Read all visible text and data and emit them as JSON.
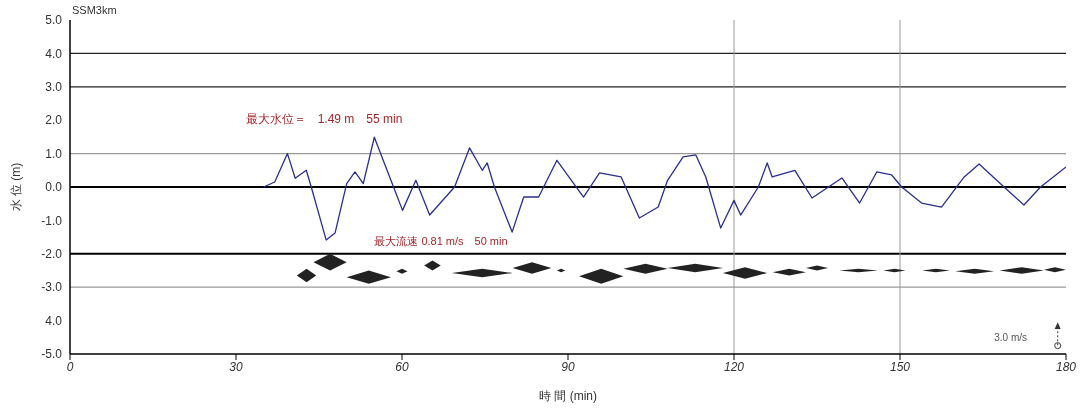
{
  "chart_data": {
    "type": "line",
    "xlabel": "時 間 (min)",
    "ylabel": "水 位 (m)",
    "x": [
      35,
      37,
      39.3,
      40.7,
      42.7,
      43.6,
      46.3,
      47.9,
      50,
      51.5,
      53,
      55,
      58,
      60.1,
      62.5,
      65,
      69.5,
      72.2,
      74.5,
      75.4,
      76.7,
      79.9,
      82,
      84.7,
      88,
      92.8,
      95.7,
      99.6,
      102.9,
      106.3,
      108,
      110.8,
      113.1,
      114.9,
      117.6,
      120,
      121.2,
      124.4,
      126,
      126.9,
      131,
      134.1,
      139.5,
      142.7,
      145.8,
      148.5,
      150.3,
      153.9,
      157.5,
      161.6,
      164.3,
      168.8,
      172.4,
      175.4,
      180
    ],
    "series": [
      {
        "color": "#2b2f8a",
        "values": [
          0,
          0.15,
          1.0,
          0.26,
          0.5,
          0,
          -1.59,
          -1.38,
          0.1,
          0.45,
          0.1,
          1.49,
          0.2,
          -0.7,
          0.2,
          -0.84,
          0,
          1.17,
          0.5,
          0.72,
          0,
          -1.35,
          -0.3,
          -0.3,
          0.8,
          -0.3,
          0.42,
          0.3,
          -0.93,
          -0.6,
          0.2,
          0.9,
          0.96,
          0.3,
          -1.23,
          -0.4,
          -0.84,
          0,
          0.72,
          0.3,
          0.5,
          -0.33,
          0.27,
          -0.48,
          0.45,
          0.36,
          0,
          -0.48,
          -0.6,
          0.3,
          0.69,
          0,
          -0.54,
          0,
          0.6
        ]
      }
    ],
    "xlim": [
      0,
      180
    ],
    "xticks": [
      0,
      30,
      60,
      90,
      120,
      150,
      180
    ],
    "ylim": [
      -5,
      5
    ],
    "yticks": [
      {
        "value": -5,
        "label": "-5.0"
      },
      {
        "value": -4,
        "label": "4.0"
      },
      {
        "value": -3,
        "label": "-3.0"
      },
      {
        "value": -2,
        "label": "-2.0"
      },
      {
        "value": -1,
        "label": "-1.0"
      },
      {
        "value": 0,
        "label": "0.0"
      },
      {
        "value": 1,
        "label": "1.0"
      },
      {
        "value": 2,
        "label": "2.0"
      },
      {
        "value": 3,
        "label": "3.0"
      },
      {
        "value": 4,
        "label": "4.0"
      },
      {
        "value": 5,
        "label": "5.0"
      }
    ],
    "ref_lines": [
      {
        "axis": "y",
        "value": 4,
        "color": "#222222"
      },
      {
        "axis": "y",
        "value": 3,
        "color": "#222222"
      },
      {
        "axis": "y",
        "value": 1,
        "color": "#9a9a9a"
      },
      {
        "axis": "y",
        "value": 0,
        "color": "#000000"
      },
      {
        "axis": "y",
        "value": -2,
        "color": "#000000"
      },
      {
        "axis": "y",
        "value": -3,
        "color": "#9a9a9a"
      },
      {
        "axis": "x",
        "value": 120,
        "color": "#9a9a9a"
      },
      {
        "axis": "x",
        "value": 150,
        "color": "#9a9a9a"
      }
    ],
    "annotations": [
      "SSM3km",
      {
        "text": "最大水位＝　1.49 m　55 min",
        "x": 55,
        "y": 1.49
      },
      "最大流速 0.81 m/s　50 min",
      "3.0 m/s"
    ],
    "grid": false,
    "legend": false,
    "marker": "none",
    "line_style": "solid"
  }
}
